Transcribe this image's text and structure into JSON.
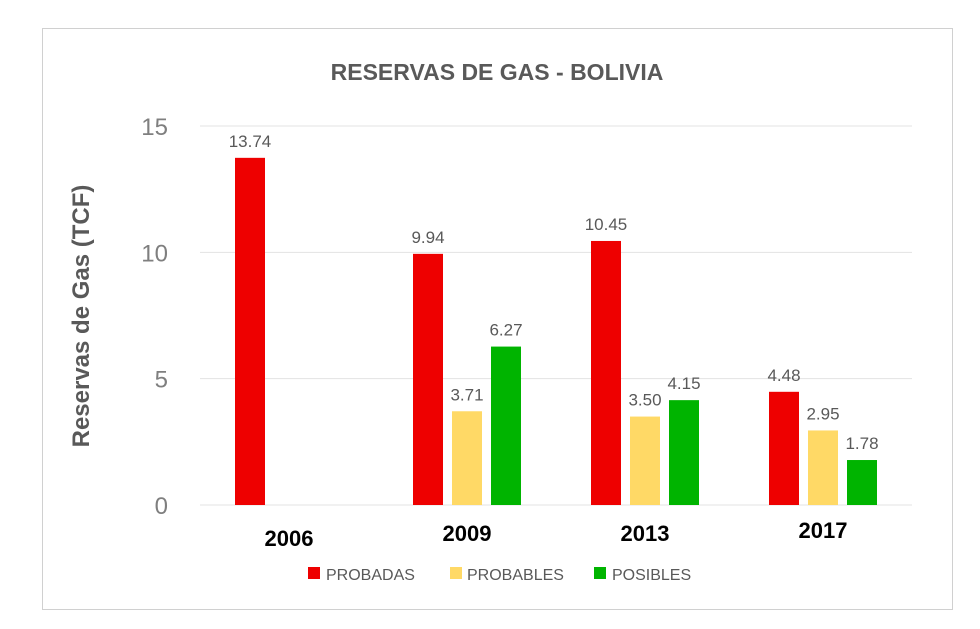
{
  "chart_data": {
    "type": "bar",
    "title": "RESERVAS DE GAS - BOLIVIA",
    "xlabel": "",
    "ylabel": "Reservas de Gas (TCF)",
    "ylim": [
      0,
      15
    ],
    "yticks": [
      0,
      5,
      10,
      15
    ],
    "grid": true,
    "legend_position": "bottom",
    "categories": [
      "2006",
      "2009",
      "2013",
      "2017"
    ],
    "series": [
      {
        "name": "PROBADAS",
        "color": "#ee0000",
        "values": [
          13.74,
          9.94,
          10.45,
          4.48
        ],
        "labels": [
          "13.74",
          "9.94",
          "10.45",
          "4.48"
        ]
      },
      {
        "name": "PROBABLES",
        "color": "#ffd966",
        "values": [
          null,
          3.71,
          3.5,
          2.95
        ],
        "labels": [
          "",
          "3.71",
          "3.50",
          "2.95"
        ]
      },
      {
        "name": "POSIBLES",
        "color": "#00b400",
        "values": [
          null,
          6.27,
          4.15,
          1.78
        ],
        "labels": [
          "",
          "6.27",
          "4.15",
          "1.78"
        ]
      }
    ]
  }
}
